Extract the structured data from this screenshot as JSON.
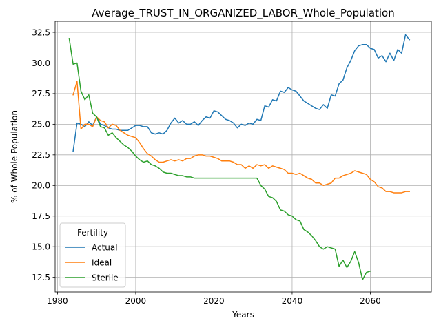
{
  "chart_data": {
    "type": "line",
    "title": "Average_TRUST_IN_ORGANIZED_LABOR_Whole_Population",
    "xlabel": "Years",
    "ylabel": "% of Whole Population",
    "xlim": [
      1979.4,
      1975.6
    ],
    "ylim": [
      11.3,
      33.4
    ],
    "xticks": [
      1980,
      2000,
      2020,
      2040,
      2060
    ],
    "xtick_labels": [
      "1980",
      "2000",
      "2020",
      "2040",
      "2060"
    ],
    "yticks": [
      12.5,
      15.0,
      17.5,
      20.0,
      22.5,
      25.0,
      27.5,
      30.0,
      32.5
    ],
    "ytick_labels": [
      "12.5",
      "15.0",
      "17.5",
      "20.0",
      "22.5",
      "25.0",
      "27.5",
      "30.0",
      "32.5"
    ],
    "grid": true,
    "legend": {
      "title": "Fertility",
      "placement": "lower-left"
    },
    "series": [
      {
        "name": "Actual",
        "color": "#1f77b4",
        "x": [
          1984,
          1985,
          1986,
          1987,
          1988,
          1989,
          1990,
          1991,
          1992,
          1993,
          1994,
          1995,
          1996,
          1997,
          1998,
          1999,
          2000,
          2001,
          2002,
          2003,
          2004,
          2005,
          2006,
          2007,
          2008,
          2009,
          2010,
          2011,
          2012,
          2013,
          2014,
          2015,
          2016,
          2017,
          2018,
          2019,
          2020,
          2021,
          2022,
          2023,
          2024,
          2025,
          2026,
          2027,
          2028,
          2029,
          2030,
          2031,
          2032,
          2033,
          2034,
          2035,
          2036,
          2037,
          2038,
          2039,
          2040,
          2041,
          2042,
          2043,
          2044,
          2045,
          2046,
          2047,
          2048,
          2049,
          2050,
          2051,
          2052,
          2053,
          2054,
          2055,
          2056,
          2057,
          2058,
          2059,
          2060,
          2061,
          2062,
          2063,
          2064,
          2065,
          2066,
          2067,
          2068,
          2069,
          2070
        ],
        "values": [
          22.8,
          25.1,
          25.0,
          24.8,
          25.2,
          24.9,
          25.6,
          25.0,
          24.9,
          24.7,
          24.6,
          24.6,
          24.5,
          24.5,
          24.5,
          24.7,
          24.9,
          24.9,
          24.8,
          24.8,
          24.3,
          24.2,
          24.3,
          24.2,
          24.5,
          25.1,
          25.5,
          25.1,
          25.3,
          25.0,
          25.0,
          25.2,
          24.9,
          25.3,
          25.6,
          25.5,
          26.1,
          26.0,
          25.7,
          25.4,
          25.3,
          25.1,
          24.7,
          25.0,
          24.9,
          25.1,
          25.0,
          25.4,
          25.3,
          26.5,
          26.4,
          27.0,
          26.9,
          27.7,
          27.6,
          28.0,
          27.8,
          27.7,
          27.3,
          26.9,
          26.7,
          26.5,
          26.3,
          26.2,
          26.6,
          26.3,
          27.4,
          27.3,
          28.3,
          28.6,
          29.6,
          30.2,
          31.0,
          31.4,
          31.5,
          31.5,
          31.2,
          31.1,
          30.4,
          30.6,
          30.1,
          30.8,
          30.2,
          31.1,
          30.8,
          32.3,
          31.9
        ]
      },
      {
        "name": "Ideal",
        "color": "#ff7f0e",
        "x": [
          1984,
          1985,
          1986,
          1987,
          1988,
          1989,
          1990,
          1991,
          1992,
          1993,
          1994,
          1995,
          1996,
          1997,
          1998,
          1999,
          2000,
          2001,
          2002,
          2003,
          2004,
          2005,
          2006,
          2007,
          2008,
          2009,
          2010,
          2011,
          2012,
          2013,
          2014,
          2015,
          2016,
          2017,
          2018,
          2019,
          2020,
          2021,
          2022,
          2023,
          2024,
          2025,
          2026,
          2027,
          2028,
          2029,
          2030,
          2031,
          2032,
          2033,
          2034,
          2035,
          2036,
          2037,
          2038,
          2039,
          2040,
          2041,
          2042,
          2043,
          2044,
          2045,
          2046,
          2047,
          2048,
          2049,
          2050,
          2051,
          2052,
          2053,
          2054,
          2055,
          2056,
          2057,
          2058,
          2059,
          2060,
          2061,
          2062,
          2063,
          2064,
          2065,
          2066,
          2067,
          2068,
          2069,
          2070
        ],
        "values": [
          27.4,
          28.5,
          24.6,
          25.0,
          25.0,
          24.8,
          25.6,
          25.3,
          25.2,
          24.7,
          25.0,
          24.9,
          24.5,
          24.3,
          24.1,
          24.0,
          23.9,
          23.5,
          23.0,
          22.6,
          22.4,
          22.1,
          21.9,
          21.9,
          22.0,
          22.1,
          22.0,
          22.1,
          22.0,
          22.2,
          22.2,
          22.4,
          22.5,
          22.5,
          22.4,
          22.4,
          22.3,
          22.2,
          22.0,
          22.0,
          22.0,
          21.9,
          21.7,
          21.7,
          21.4,
          21.6,
          21.4,
          21.7,
          21.6,
          21.7,
          21.4,
          21.6,
          21.5,
          21.4,
          21.3,
          21.0,
          21.0,
          20.9,
          21.0,
          20.8,
          20.6,
          20.5,
          20.2,
          20.2,
          20.0,
          20.1,
          20.2,
          20.6,
          20.6,
          20.8,
          20.9,
          21.0,
          21.2,
          21.1,
          21.0,
          20.9,
          20.5,
          20.3,
          19.9,
          19.8,
          19.5,
          19.5,
          19.4,
          19.4,
          19.4,
          19.5,
          19.5
        ]
      },
      {
        "name": "Sterile",
        "color": "#2ca02c",
        "x": [
          1983,
          1984,
          1985,
          1986,
          1987,
          1988,
          1989,
          1990,
          1991,
          1992,
          1993,
          1994,
          1995,
          1996,
          1997,
          1998,
          1999,
          2000,
          2001,
          2002,
          2003,
          2004,
          2005,
          2006,
          2007,
          2008,
          2009,
          2010,
          2011,
          2012,
          2013,
          2014,
          2015,
          2016,
          2017,
          2018,
          2019,
          2020,
          2021,
          2022,
          2023,
          2024,
          2025,
          2026,
          2027,
          2028,
          2029,
          2030,
          2031,
          2032,
          2033,
          2034,
          2035,
          2036,
          2037,
          2038,
          2039,
          2040,
          2041,
          2042,
          2043,
          2044,
          2045,
          2046,
          2047,
          2048,
          2049,
          2050,
          2051,
          2052,
          2053,
          2054,
          2055,
          2056,
          2057,
          2058,
          2059,
          2060
        ],
        "values": [
          32.0,
          29.9,
          30.0,
          27.7,
          27.0,
          27.4,
          25.9,
          25.6,
          24.8,
          24.7,
          24.1,
          24.3,
          23.9,
          23.6,
          23.3,
          23.1,
          22.8,
          22.4,
          22.1,
          21.9,
          22.0,
          21.7,
          21.6,
          21.4,
          21.1,
          21.0,
          21.0,
          20.9,
          20.8,
          20.8,
          20.7,
          20.7,
          20.6,
          20.6,
          20.6,
          20.6,
          20.6,
          20.6,
          20.6,
          20.6,
          20.6,
          20.6,
          20.6,
          20.6,
          20.6,
          20.6,
          20.6,
          20.6,
          20.6,
          20.0,
          19.7,
          19.1,
          19.0,
          18.7,
          18.0,
          17.9,
          17.6,
          17.5,
          17.2,
          17.1,
          16.4,
          16.2,
          15.9,
          15.5,
          15.0,
          14.8,
          15.0,
          14.9,
          14.8,
          13.4,
          13.9,
          13.3,
          13.8,
          14.6,
          13.7,
          12.3,
          12.9,
          13.0
        ]
      }
    ]
  }
}
